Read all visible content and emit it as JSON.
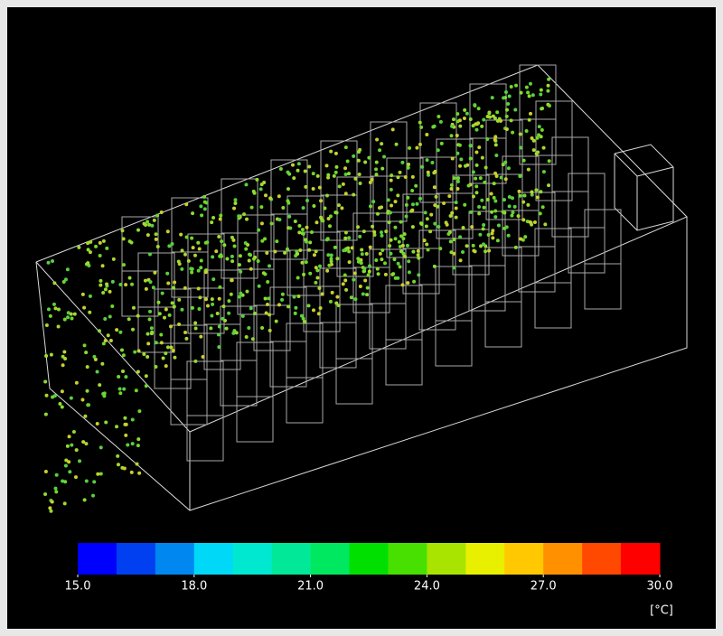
{
  "colorbar": {
    "range": [
      15,
      30
    ],
    "colors": [
      "#0000ff",
      "#0040f0",
      "#0088f0",
      "#00d8f8",
      "#00e8d0",
      "#00e898",
      "#00e860",
      "#00e000",
      "#48e000",
      "#a8e400",
      "#e8f000",
      "#ffc800",
      "#ff9000",
      "#ff4800",
      "#ff0000"
    ],
    "ticks": [
      {
        "value": 15,
        "label": "15.0"
      },
      {
        "value": 18,
        "label": "18.0"
      },
      {
        "value": 21,
        "label": "21.0"
      },
      {
        "value": 24,
        "label": "24.0"
      },
      {
        "value": 27,
        "label": "27.0"
      },
      {
        "value": 30,
        "label": "30.0"
      }
    ],
    "unit": "[°C]"
  }
}
